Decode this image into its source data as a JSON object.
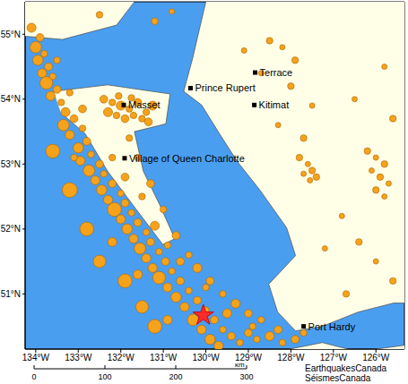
{
  "chart_data": {
    "type": "scatter",
    "grid": false,
    "color": "#f7a21b",
    "xlim": [
      -134.25,
      -125.33
    ],
    "ylim": [
      50.15,
      55.5
    ],
    "xticks": [
      {
        "value": -134,
        "label": "134°W"
      },
      {
        "value": -133,
        "label": "133°W"
      },
      {
        "value": -132,
        "label": "132°W"
      },
      {
        "value": -131,
        "label": "131°W"
      },
      {
        "value": -130,
        "label": "130°W"
      },
      {
        "value": -129,
        "label": "129°W"
      },
      {
        "value": -128,
        "label": "128°W"
      },
      {
        "value": -127,
        "label": "127°W"
      },
      {
        "value": -126,
        "label": "126°W"
      }
    ],
    "yticks": [
      {
        "value": 51,
        "label": "51°N"
      },
      {
        "value": 52,
        "label": "52°N"
      },
      {
        "value": 53,
        "label": "53°N"
      },
      {
        "value": 54,
        "label": "54°N"
      },
      {
        "value": 55,
        "label": "55°N"
      }
    ],
    "land": {
      "color": "#ffffe8",
      "polygons": [
        [
          [
            -130.0,
            55.9
          ],
          [
            -130.0,
            55.5
          ],
          [
            -130.31,
            54.63
          ],
          [
            -130.52,
            54.12
          ],
          [
            -130.1,
            53.91
          ],
          [
            -129.68,
            53.47
          ],
          [
            -129.26,
            53.04
          ],
          [
            -128.73,
            52.6
          ],
          [
            -128.1,
            52.02
          ],
          [
            -127.89,
            51.59
          ],
          [
            -128.52,
            51.15
          ],
          [
            -128.31,
            50.72
          ],
          [
            -127.89,
            50.43
          ],
          [
            -127.26,
            50.5
          ],
          [
            -126.42,
            50.72
          ],
          [
            -125.58,
            50.86
          ],
          [
            -125.0,
            50.86
          ],
          [
            -125.0,
            55.9
          ]
        ],
        [
          [
            -128.94,
            49.8
          ],
          [
            -128.94,
            49.85
          ],
          [
            -128.1,
            50.14
          ],
          [
            -127.26,
            50.25
          ],
          [
            -126.42,
            50.11
          ],
          [
            -125.32,
            50.21
          ],
          [
            -125.0,
            50.21
          ],
          [
            -125.0,
            49.8
          ]
        ],
        [
          [
            -133.58,
            54.12
          ],
          [
            -132.31,
            54.22
          ],
          [
            -130.84,
            54.08
          ],
          [
            -130.94,
            53.62
          ],
          [
            -131.68,
            53.5
          ],
          [
            -131.47,
            52.89
          ],
          [
            -131.09,
            52.38
          ],
          [
            -130.73,
            51.85
          ],
          [
            -131.01,
            51.76
          ],
          [
            -131.68,
            52.34
          ],
          [
            -132.31,
            52.89
          ],
          [
            -132.84,
            53.47
          ],
          [
            -133.41,
            53.79
          ]
        ],
        [
          [
            -134.8,
            55.9
          ],
          [
            -131.68,
            55.9
          ],
          [
            -131.68,
            55.5
          ],
          [
            -132.1,
            55.14
          ],
          [
            -133.37,
            54.92
          ],
          [
            -134.8,
            55.0
          ]
        ]
      ]
    },
    "earthquakes": [
      [
        -134.1,
        55.1,
        3
      ],
      [
        -133.9,
        54.95,
        2.5
      ],
      [
        -134.0,
        54.8,
        4
      ],
      [
        -133.8,
        54.7,
        2
      ],
      [
        -133.95,
        54.6,
        3.5
      ],
      [
        -133.7,
        54.5,
        2.5
      ],
      [
        -133.85,
        54.4,
        3
      ],
      [
        -133.6,
        54.35,
        2
      ],
      [
        -133.75,
        54.25,
        4.5
      ],
      [
        -133.5,
        54.15,
        2.5
      ],
      [
        -133.65,
        54.05,
        3
      ],
      [
        -133.4,
        53.95,
        2
      ],
      [
        -132.4,
        54.0,
        2.5
      ],
      [
        -132.2,
        53.95,
        2
      ],
      [
        -132.0,
        53.9,
        3
      ],
      [
        -131.8,
        53.85,
        2
      ],
      [
        -131.6,
        53.95,
        2.5
      ],
      [
        -131.4,
        53.8,
        2
      ],
      [
        -131.25,
        53.9,
        3
      ],
      [
        -132.1,
        53.75,
        2
      ],
      [
        -131.9,
        53.7,
        2.5
      ],
      [
        -131.7,
        53.75,
        2
      ],
      [
        -131.5,
        53.7,
        2
      ],
      [
        -132.3,
        53.8,
        3
      ],
      [
        -131.35,
        53.65,
        2.5
      ],
      [
        -132.05,
        54.05,
        2
      ],
      [
        -131.75,
        54.02,
        2
      ],
      [
        -133.3,
        53.8,
        3
      ],
      [
        -133.1,
        53.7,
        2.5
      ],
      [
        -133.35,
        53.6,
        4
      ],
      [
        -132.9,
        53.55,
        2
      ],
      [
        -133.2,
        53.45,
        3
      ],
      [
        -132.8,
        53.35,
        2.5
      ],
      [
        -133.0,
        53.25,
        3.5
      ],
      [
        -132.7,
        53.15,
        2
      ],
      [
        -132.95,
        53.05,
        3
      ],
      [
        -132.5,
        53.0,
        2.5
      ],
      [
        -132.75,
        52.9,
        4
      ],
      [
        -132.4,
        52.85,
        2
      ],
      [
        -132.6,
        52.75,
        3
      ],
      [
        -132.2,
        52.7,
        2.5
      ],
      [
        -132.45,
        52.6,
        3.5
      ],
      [
        -132.0,
        52.55,
        2
      ],
      [
        -132.3,
        52.45,
        3
      ],
      [
        -131.9,
        52.4,
        2.5
      ],
      [
        -132.15,
        52.3,
        5
      ],
      [
        -131.75,
        52.25,
        2
      ],
      [
        -132.0,
        52.15,
        3
      ],
      [
        -131.6,
        52.1,
        2.5
      ],
      [
        -131.85,
        52.0,
        3.5
      ],
      [
        -131.4,
        51.95,
        2
      ],
      [
        -131.7,
        51.85,
        3
      ],
      [
        -131.3,
        51.8,
        2.5
      ],
      [
        -131.55,
        51.7,
        4
      ],
      [
        -131.1,
        51.65,
        2
      ],
      [
        -131.4,
        51.55,
        3
      ],
      [
        -130.95,
        51.5,
        2.5
      ],
      [
        -131.25,
        51.4,
        3
      ],
      [
        -130.8,
        51.35,
        2
      ],
      [
        -131.1,
        51.25,
        4.5
      ],
      [
        -130.6,
        51.2,
        2.5
      ],
      [
        -130.9,
        51.1,
        3
      ],
      [
        -130.4,
        51.05,
        2
      ],
      [
        -130.7,
        50.95,
        3.5
      ],
      [
        -130.2,
        50.9,
        2.5
      ],
      [
        -130.5,
        50.8,
        3
      ],
      [
        -130.0,
        50.75,
        2
      ],
      [
        -130.3,
        50.6,
        4
      ],
      [
        -129.8,
        50.6,
        2.5
      ],
      [
        -130.1,
        50.45,
        3
      ],
      [
        -129.6,
        50.45,
        2
      ],
      [
        -129.9,
        50.3,
        3.5
      ],
      [
        -129.4,
        50.35,
        2.5
      ],
      [
        -129.7,
        50.2,
        3
      ],
      [
        -129.2,
        50.25,
        2
      ],
      [
        -129.0,
        50.4,
        2.5
      ],
      [
        -128.8,
        50.3,
        2
      ],
      [
        -128.5,
        50.35,
        3
      ],
      [
        -128.2,
        50.25,
        2
      ],
      [
        -127.9,
        50.3,
        2.5
      ],
      [
        -133.6,
        53.2,
        5
      ],
      [
        -133.2,
        52.6,
        5.5
      ],
      [
        -132.8,
        52.0,
        5
      ],
      [
        -132.5,
        51.5,
        4.5
      ],
      [
        -131.9,
        51.2,
        5
      ],
      [
        -131.5,
        50.8,
        4.5
      ],
      [
        -131.2,
        50.5,
        5
      ],
      [
        -132.2,
        51.8,
        3
      ],
      [
        -131.6,
        51.3,
        3
      ],
      [
        -130.9,
        50.6,
        3
      ],
      [
        -131.8,
        53.4,
        2
      ],
      [
        -131.6,
        53.1,
        2
      ],
      [
        -131.3,
        52.7,
        2.5
      ],
      [
        -131.0,
        52.3,
        2
      ],
      [
        -130.7,
        51.9,
        2.5
      ],
      [
        -130.4,
        51.6,
        2
      ],
      [
        -130.2,
        51.4,
        3
      ],
      [
        -129.9,
        51.2,
        2.5
      ],
      [
        -129.6,
        51.0,
        2
      ],
      [
        -129.3,
        50.85,
        3
      ],
      [
        -129.0,
        50.7,
        2.5
      ],
      [
        -128.7,
        50.6,
        2
      ],
      [
        -133.5,
        54.6,
        2
      ],
      [
        -133.2,
        54.1,
        2
      ],
      [
        -132.9,
        53.85,
        2.5
      ],
      [
        -133.1,
        53.1,
        2
      ],
      [
        -132.2,
        53.1,
        2
      ],
      [
        -131.9,
        52.8,
        2.5
      ],
      [
        -131.5,
        52.5,
        2
      ],
      [
        -131.2,
        52.05,
        3
      ],
      [
        -130.9,
        51.75,
        2
      ],
      [
        -130.6,
        51.5,
        2.5
      ],
      [
        -130.0,
        51.1,
        2
      ],
      [
        -129.5,
        50.7,
        3
      ],
      [
        -128.9,
        50.5,
        2
      ],
      [
        -128.3,
        50.45,
        2.5
      ],
      [
        -127.7,
        50.4,
        2
      ],
      [
        -128.5,
        54.9,
        2
      ],
      [
        -128.2,
        54.8,
        1.5
      ],
      [
        -127.9,
        54.6,
        2
      ],
      [
        -129.1,
        54.75,
        1.5
      ],
      [
        -128.7,
        54.4,
        1.5
      ],
      [
        -128.0,
        54.2,
        2
      ],
      [
        -127.5,
        53.9,
        1.5
      ],
      [
        -128.3,
        53.6,
        1.5
      ],
      [
        -127.7,
        53.4,
        2
      ],
      [
        -127.8,
        53.1,
        2
      ],
      [
        -127.6,
        53.0,
        1.5
      ],
      [
        -127.5,
        52.9,
        2
      ],
      [
        -127.7,
        52.85,
        1.5
      ],
      [
        -127.4,
        52.8,
        2
      ],
      [
        -127.55,
        52.75,
        1.5
      ],
      [
        -126.2,
        53.2,
        2
      ],
      [
        -126.0,
        53.1,
        1.5
      ],
      [
        -125.8,
        53.0,
        2
      ],
      [
        -126.1,
        52.9,
        1.5
      ],
      [
        -125.9,
        52.8,
        2
      ],
      [
        -125.7,
        52.7,
        1.5
      ],
      [
        -126.0,
        52.6,
        2
      ],
      [
        -125.8,
        52.5,
        1.5
      ],
      [
        -126.8,
        52.2,
        1.5
      ],
      [
        -126.4,
        51.8,
        2
      ],
      [
        -126.0,
        51.5,
        1.5
      ],
      [
        -125.6,
        51.2,
        2
      ],
      [
        -127.2,
        51.7,
        1.5
      ],
      [
        -126.7,
        51.0,
        2
      ],
      [
        -125.8,
        54.5,
        1.5
      ],
      [
        -126.5,
        54.0,
        1.5
      ],
      [
        -125.6,
        53.7,
        2
      ],
      [
        -131.2,
        55.2,
        2
      ],
      [
        -130.8,
        55.35,
        1.5
      ],
      [
        -132.5,
        55.3,
        2
      ]
    ],
    "event": {
      "lon": -130.06,
      "lat": 50.67,
      "color": "#ff2a2a"
    },
    "places": [
      {
        "name": "Masset",
        "lon": -131.93,
        "lat": 53.91
      },
      {
        "name": "Village of Queen Charlotte",
        "lon": -131.91,
        "lat": 53.09
      },
      {
        "name": "Prince Rupert",
        "lon": -130.36,
        "lat": 54.17
      },
      {
        "name": "Terrace",
        "lon": -128.84,
        "lat": 54.41
      },
      {
        "name": "Kitimat",
        "lon": -128.86,
        "lat": 53.91
      },
      {
        "name": "Port Hardy",
        "lon": -127.7,
        "lat": 50.5
      }
    ],
    "scale_bar": {
      "ticks": [
        0,
        100,
        200,
        300
      ],
      "unit": "km"
    },
    "credits": [
      "EarthquakesCanada",
      "SéismesCanada"
    ]
  }
}
